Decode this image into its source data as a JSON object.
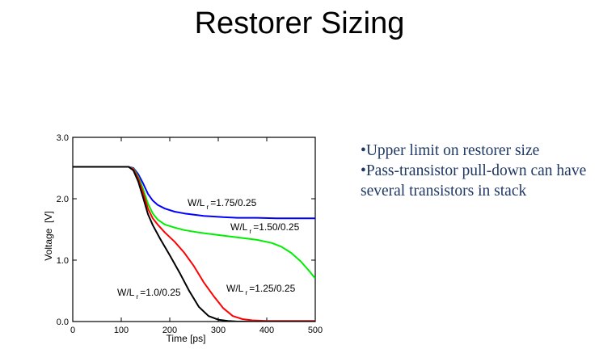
{
  "slide": {
    "title": "Restorer Sizing",
    "bullets": [
      "•Upper limit on restorer size",
      "•Pass-transistor pull-down can have several transistors in stack"
    ]
  },
  "chart_data": {
    "type": "line",
    "xlabel": "Time [ps]",
    "ylabel": "Voltage  [V]",
    "xlim": [
      0,
      500
    ],
    "ylim": [
      0,
      3.0
    ],
    "xticks": [
      "0",
      "100",
      "200",
      "300",
      "400",
      "500"
    ],
    "yticks": [
      "0.0",
      "1.0",
      "2.0",
      "3.0"
    ],
    "grid": false,
    "series": [
      {
        "color": "#0000ff",
        "label": [
          "W/L",
          "r",
          "=1.75/0.25"
        ],
        "x": [
          0,
          115,
          125,
          135,
          145,
          155,
          165,
          175,
          190,
          210,
          230,
          250,
          270,
          290,
          310,
          340,
          380,
          420,
          460,
          500
        ],
        "y": [
          2.52,
          2.52,
          2.5,
          2.4,
          2.25,
          2.08,
          1.97,
          1.9,
          1.84,
          1.79,
          1.76,
          1.74,
          1.72,
          1.71,
          1.7,
          1.69,
          1.69,
          1.68,
          1.68,
          1.68
        ]
      },
      {
        "color": "#00ee00",
        "label": [
          "W/L",
          "r",
          "=1.50/0.25"
        ],
        "x": [
          0,
          115,
          125,
          135,
          145,
          155,
          165,
          175,
          190,
          210,
          230,
          260,
          290,
          320,
          350,
          380,
          410,
          430,
          450,
          470,
          490,
          500
        ],
        "y": [
          2.52,
          2.52,
          2.49,
          2.36,
          2.16,
          1.92,
          1.76,
          1.66,
          1.58,
          1.53,
          1.49,
          1.45,
          1.42,
          1.39,
          1.36,
          1.33,
          1.28,
          1.22,
          1.12,
          0.98,
          0.8,
          0.7
        ]
      },
      {
        "color": "#ff0000",
        "label": [
          "W/L",
          "r",
          "=1.25/0.25"
        ],
        "x": [
          0,
          115,
          125,
          135,
          145,
          155,
          165,
          175,
          190,
          210,
          230,
          250,
          270,
          290,
          310,
          330,
          350,
          370,
          400,
          500
        ],
        "y": [
          2.52,
          2.52,
          2.48,
          2.33,
          2.1,
          1.84,
          1.68,
          1.58,
          1.45,
          1.3,
          1.12,
          0.9,
          0.64,
          0.42,
          0.22,
          0.09,
          0.04,
          0.02,
          0.01,
          0.01
        ]
      },
      {
        "color": "#000000",
        "label": [
          "W/L",
          "r",
          "=1.0/0.25"
        ],
        "x": [
          0,
          115,
          125,
          135,
          145,
          155,
          165,
          180,
          200,
          220,
          240,
          260,
          280,
          300,
          320,
          340,
          360,
          400,
          500
        ],
        "y": [
          2.52,
          2.52,
          2.46,
          2.28,
          2.02,
          1.75,
          1.57,
          1.35,
          1.08,
          0.8,
          0.5,
          0.24,
          0.09,
          0.03,
          0.01,
          0.0,
          0.0,
          0.0,
          0.0
        ]
      }
    ]
  }
}
